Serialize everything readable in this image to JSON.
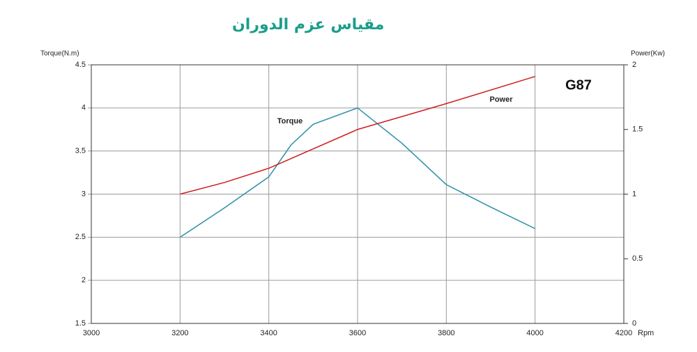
{
  "chart_data": {
    "type": "line",
    "title": "مقياس عزم الدوران",
    "model": "G87",
    "x_label": "Rpm",
    "y_label": "Torque(N.m)",
    "y2_label": "Power(Kw)",
    "x": [
      3200,
      3300,
      3400,
      3450,
      3500,
      3600,
      3700,
      3800,
      3900,
      4000
    ],
    "series": [
      {
        "name": "Torque",
        "color": "#2a8fa8",
        "values": [
          2.5,
          2.84,
          3.2,
          3.57,
          3.81,
          4.0,
          3.59,
          3.11,
          2.85,
          2.6
        ]
      },
      {
        "name": "Power",
        "color": "#cc1f1f",
        "axis": "y2",
        "values": [
          1.0,
          1.09,
          1.2,
          null,
          null,
          1.5,
          null,
          1.7,
          null,
          1.91
        ]
      }
    ],
    "xlim": [
      3000,
      4200
    ],
    "xticks": [
      3000,
      3200,
      3400,
      3600,
      3800,
      4000,
      4200
    ],
    "ylim": [
      1.5,
      4.5
    ],
    "yticks": [
      1.5,
      2,
      2.5,
      3,
      3.5,
      4,
      4.5
    ],
    "y2lim": [
      0,
      2
    ],
    "y2ticks": [
      0,
      0.5,
      1,
      1.5,
      2
    ],
    "grid": true
  }
}
